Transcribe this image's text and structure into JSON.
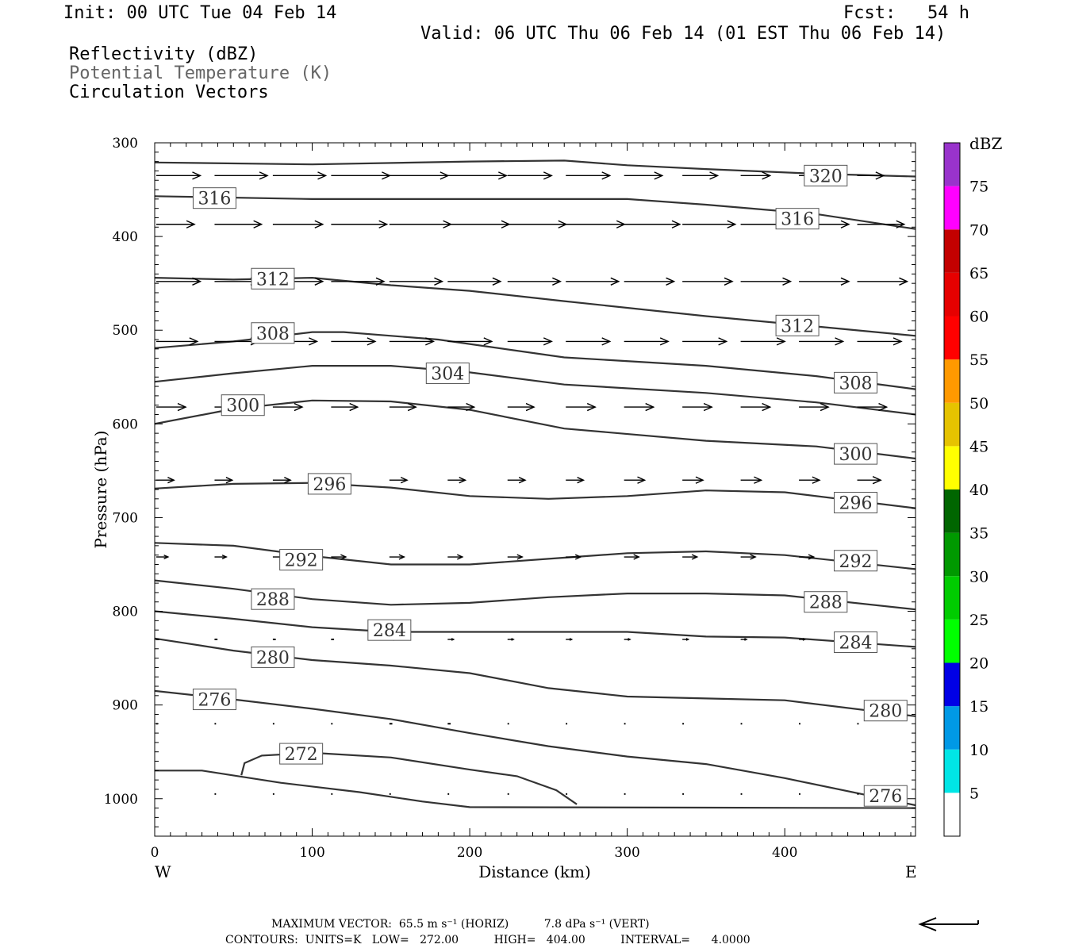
{
  "header": {
    "init": "Init: 00 UTC Tue 04 Feb 14",
    "fcst": "Fcst:   54 h",
    "valid": "Valid: 06 UTC Thu 06 Feb 14 (01 EST Thu 06 Feb 14)",
    "field1": "Reflectivity (dBZ)",
    "field2": "Potential Temperature (K)",
    "field3": "Circulation Vectors"
  },
  "footer": {
    "line1": "MAXIMUM VECTOR:  65.5 m s⁻¹ (HORIZ)          7.8 dPa s⁻¹ (VERT)",
    "line2": "CONTOURS:  UNITS=K   LOW=   272.00          HIGH=   404.00          INTERVAL=      4.0000"
  },
  "colors": {
    "contour": "#333333",
    "vector": "#000000",
    "colorbar": [
      "#ffffff",
      "#00e6e6",
      "#0099e6",
      "#0000e6",
      "#00ff00",
      "#00cc00",
      "#009900",
      "#006600",
      "#ffff00",
      "#e6c300",
      "#ff9900",
      "#ff0000",
      "#e60000",
      "#c30000",
      "#ff00ff",
      "#9933cc",
      "#ffffff"
    ]
  },
  "chart_data": {
    "type": "contour",
    "title": "Reflectivity (dBZ) / Potential Temperature (K) / Circulation Vectors",
    "xlabel": "Distance (km)",
    "ylabel": "Pressure (hPa)",
    "xlim": [
      0,
      483
    ],
    "ylim": [
      1040,
      300
    ],
    "x_ticks": [
      0,
      100,
      200,
      300,
      400
    ],
    "y_ticks": [
      300,
      400,
      500,
      600,
      700,
      800,
      900,
      1000
    ],
    "x_end_labels": {
      "left": "W",
      "right": "E"
    },
    "colorbar": {
      "label": "dBZ",
      "levels": [
        5,
        10,
        15,
        20,
        25,
        30,
        35,
        40,
        45,
        50,
        55,
        60,
        65,
        70,
        75
      ],
      "range": [
        0,
        80
      ]
    },
    "contours": [
      {
        "value": 320,
        "points": [
          [
            0,
            321
          ],
          [
            100,
            323
          ],
          [
            200,
            320
          ],
          [
            260,
            319
          ],
          [
            300,
            324
          ],
          [
            350,
            328
          ],
          [
            420,
            333
          ],
          [
            483,
            336
          ]
        ],
        "label_at": [
          426,
          335
        ]
      },
      {
        "value": 316,
        "points": [
          [
            0,
            357
          ],
          [
            100,
            360
          ],
          [
            200,
            360
          ],
          [
            300,
            360
          ],
          [
            350,
            366
          ],
          [
            420,
            376
          ],
          [
            483,
            392
          ]
        ],
        "label_at": [
          [
            38,
            359
          ],
          [
            408,
            381
          ]
        ]
      },
      {
        "value": 312,
        "points": [
          [
            0,
            444
          ],
          [
            50,
            446
          ],
          [
            100,
            444
          ],
          [
            150,
            452
          ],
          [
            200,
            458
          ],
          [
            260,
            469
          ],
          [
            350,
            485
          ],
          [
            420,
            496
          ],
          [
            483,
            506
          ]
        ],
        "label_at": [
          [
            75,
            445
          ],
          [
            408,
            495
          ]
        ]
      },
      {
        "value": 308,
        "points": [
          [
            0,
            519
          ],
          [
            50,
            512
          ],
          [
            100,
            502
          ],
          [
            120,
            502
          ],
          [
            180,
            510
          ],
          [
            260,
            529
          ],
          [
            350,
            538
          ],
          [
            420,
            549
          ],
          [
            483,
            563
          ]
        ],
        "label_at": [
          [
            75,
            503
          ],
          [
            445,
            556
          ]
        ]
      },
      {
        "value": 304,
        "points": [
          [
            0,
            555
          ],
          [
            50,
            546
          ],
          [
            100,
            538
          ],
          [
            150,
            538
          ],
          [
            200,
            545
          ],
          [
            260,
            558
          ],
          [
            350,
            567
          ],
          [
            420,
            577
          ],
          [
            483,
            590
          ]
        ],
        "label_at": [
          [
            186,
            546
          ]
        ]
      },
      {
        "value": 300,
        "points": [
          [
            0,
            600
          ],
          [
            50,
            584
          ],
          [
            100,
            575
          ],
          [
            150,
            576
          ],
          [
            200,
            585
          ],
          [
            260,
            605
          ],
          [
            350,
            618
          ],
          [
            420,
            624
          ],
          [
            483,
            637
          ]
        ],
        "label_at": [
          [
            56,
            580
          ],
          [
            445,
            632
          ]
        ]
      },
      {
        "value": 296,
        "points": [
          [
            0,
            669
          ],
          [
            50,
            664
          ],
          [
            100,
            663
          ],
          [
            150,
            668
          ],
          [
            200,
            677
          ],
          [
            250,
            680
          ],
          [
            300,
            677
          ],
          [
            350,
            671
          ],
          [
            400,
            673
          ],
          [
            483,
            690
          ]
        ],
        "label_at": [
          [
            111,
            664
          ],
          [
            445,
            684
          ]
        ]
      },
      {
        "value": 292,
        "points": [
          [
            0,
            727
          ],
          [
            50,
            730
          ],
          [
            100,
            741
          ],
          [
            150,
            750
          ],
          [
            200,
            750
          ],
          [
            250,
            744
          ],
          [
            300,
            738
          ],
          [
            350,
            736
          ],
          [
            400,
            740
          ],
          [
            483,
            755
          ]
        ],
        "label_at": [
          [
            93,
            745
          ],
          [
            445,
            746
          ]
        ]
      },
      {
        "value": 288,
        "points": [
          [
            0,
            767
          ],
          [
            50,
            776
          ],
          [
            100,
            787
          ],
          [
            150,
            793
          ],
          [
            200,
            791
          ],
          [
            250,
            785
          ],
          [
            300,
            781
          ],
          [
            350,
            781
          ],
          [
            400,
            783
          ],
          [
            483,
            798
          ]
        ],
        "label_at": [
          [
            75,
            787
          ],
          [
            426,
            790
          ]
        ]
      },
      {
        "value": 284,
        "points": [
          [
            0,
            800
          ],
          [
            50,
            808
          ],
          [
            100,
            817
          ],
          [
            150,
            822
          ],
          [
            200,
            822
          ],
          [
            300,
            822
          ],
          [
            350,
            827
          ],
          [
            400,
            828
          ],
          [
            483,
            838
          ]
        ],
        "label_at": [
          [
            149,
            820
          ],
          [
            445,
            833
          ]
        ]
      },
      {
        "value": 280,
        "points": [
          [
            0,
            829
          ],
          [
            50,
            842
          ],
          [
            100,
            852
          ],
          [
            150,
            858
          ],
          [
            200,
            866
          ],
          [
            250,
            882
          ],
          [
            300,
            891
          ],
          [
            350,
            893
          ],
          [
            400,
            895
          ],
          [
            483,
            912
          ]
        ],
        "label_at": [
          [
            75,
            849
          ],
          [
            464,
            906
          ]
        ]
      },
      {
        "value": 276,
        "points": [
          [
            0,
            885
          ],
          [
            50,
            894
          ],
          [
            100,
            904
          ],
          [
            150,
            915
          ],
          [
            200,
            930
          ],
          [
            250,
            944
          ],
          [
            300,
            955
          ],
          [
            350,
            963
          ],
          [
            400,
            978
          ],
          [
            483,
            1007
          ]
        ],
        "label_at": [
          [
            38,
            894
          ],
          [
            464,
            997
          ]
        ]
      },
      {
        "value": 272,
        "points": [
          [
            55,
            975
          ],
          [
            57,
            962
          ],
          [
            68,
            954
          ],
          [
            100,
            951
          ],
          [
            150,
            956
          ],
          [
            200,
            969
          ],
          [
            230,
            976
          ],
          [
            255,
            991
          ],
          [
            268,
            1006
          ]
        ],
        "label_at": [
          [
            93,
            952
          ]
        ]
      },
      {
        "value": "ground",
        "points": [
          [
            0,
            970
          ],
          [
            30,
            970
          ],
          [
            80,
            983
          ],
          [
            130,
            993
          ],
          [
            170,
            1003
          ],
          [
            200,
            1009
          ],
          [
            483,
            1010
          ]
        ]
      }
    ],
    "vectors": [
      {
        "p": 335,
        "x": [
          1,
          38,
          75,
          112,
          149,
          186,
          224,
          261,
          298,
          335,
          372,
          409,
          446,
          483
        ],
        "u": [
          1.5,
          1.8,
          1.8,
          2.0,
          2.0,
          2.0,
          1.5,
          1.5,
          1.3,
          1.2,
          1.0,
          0.9,
          0.9,
          0.9
        ]
      },
      {
        "p": 387,
        "x": [
          1,
          38,
          75,
          112,
          149,
          186,
          224,
          261,
          298,
          335,
          372,
          409,
          446,
          483
        ],
        "u": [
          1.3,
          1.6,
          1.7,
          1.9,
          2.1,
          2.1,
          2.0,
          2.0,
          1.9,
          1.8,
          1.7,
          1.7,
          1.6,
          1.5
        ]
      },
      {
        "p": 448,
        "x": [
          1,
          38,
          75,
          112,
          149,
          186,
          224,
          261,
          298,
          335,
          372,
          409,
          446,
          483
        ],
        "u": [
          1.5,
          1.5,
          1.7,
          1.8,
          1.8,
          1.8,
          1.8,
          1.8,
          1.7,
          1.7,
          1.7,
          1.7,
          1.7,
          1.7
        ]
      },
      {
        "p": 512,
        "x": [
          1,
          38,
          75,
          112,
          149,
          186,
          224,
          261,
          298,
          335,
          372,
          409,
          446,
          483
        ],
        "u": [
          1.4,
          1.5,
          1.5,
          1.5,
          1.5,
          1.5,
          1.5,
          1.5,
          1.5,
          1.5,
          1.5,
          1.5,
          1.5,
          1.5
        ]
      },
      {
        "p": 582,
        "x": [
          1,
          38,
          75,
          112,
          149,
          186,
          224,
          261,
          298,
          335,
          372,
          409,
          446,
          483
        ],
        "u": [
          1.0,
          1.0,
          1.0,
          0.9,
          0.9,
          0.9,
          0.9,
          1.0,
          1.0,
          1.0,
          1.0,
          1.0,
          1.0,
          1.0
        ]
      },
      {
        "p": 660,
        "x": [
          1,
          38,
          75,
          112,
          149,
          186,
          224,
          261,
          298,
          335,
          372,
          409,
          446,
          483
        ],
        "u": [
          0.6,
          0.6,
          0.6,
          0.6,
          0.6,
          0.6,
          0.6,
          0.6,
          0.7,
          0.7,
          0.7,
          0.7,
          0.8,
          0.7
        ]
      },
      {
        "p": 742,
        "x": [
          1,
          38,
          75,
          112,
          149,
          186,
          224,
          261,
          298,
          335,
          372,
          409,
          446,
          483
        ],
        "u": [
          0.4,
          0.4,
          0.4,
          0.5,
          0.5,
          0.5,
          0.5,
          0.5,
          0.5,
          0.5,
          0.5,
          0.5,
          0.5,
          0.5
        ]
      },
      {
        "p": 830,
        "x": [
          1,
          38,
          75,
          112,
          149,
          186,
          224,
          261,
          298,
          335,
          372,
          409,
          446,
          483
        ],
        "u": [
          0.1,
          0.1,
          0.1,
          0.1,
          0.2,
          0.2,
          0.2,
          0.2,
          0.2,
          0.2,
          0.2,
          0.2,
          0.2,
          0.2
        ]
      },
      {
        "p": 920,
        "x": [
          1,
          38,
          75,
          112,
          149,
          186,
          224,
          261,
          298,
          335,
          372,
          409,
          446,
          483
        ],
        "u": [
          0.05,
          0.05,
          0.05,
          0.05,
          0.1,
          0.1,
          0.05,
          0.05,
          0.05,
          0.05,
          0.05,
          0.05,
          0.05,
          0.05
        ]
      },
      {
        "p": 995,
        "x": [
          38,
          75,
          112,
          149,
          186,
          224,
          261,
          298,
          335,
          372,
          409,
          446
        ],
        "u": [
          0.05,
          0.05,
          0.05,
          0.05,
          0.05,
          0.05,
          0.05,
          0.05,
          0.05,
          0.05,
          0.05,
          0.05
        ]
      }
    ],
    "reference_vector_direction": "left"
  }
}
